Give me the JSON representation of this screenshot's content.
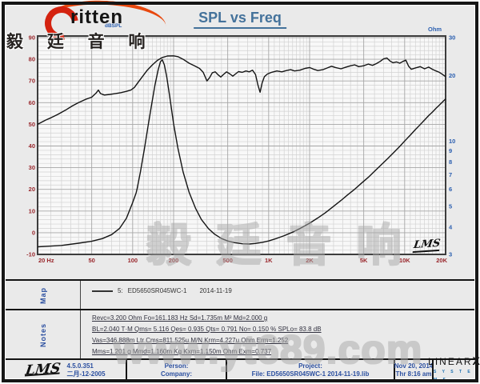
{
  "header": {
    "logo_text": "ritten",
    "logo_cjk": "毅 廷 音 响",
    "title": "SPL vs Freq"
  },
  "chart": {
    "left_unit": "dBSPL",
    "right_unit": "Ohm",
    "lms_mark": "LMS",
    "watermark_cjk": "毅 廷 音 响",
    "colors": {
      "freq_labels": "#99272c",
      "left_labels": "#99272c",
      "right_labels": "#2b5fb0",
      "curve": "#141414",
      "grid_minor": "#d2d2d2",
      "grid_major": "#a6a6a6",
      "plot_bg": "#f8f8f8",
      "plot_frame": "#3d3d3d"
    }
  },
  "chart_data": {
    "type": "line",
    "title": "SPL vs Freq",
    "x_axis": {
      "scale": "log",
      "min": 20,
      "max": 20000,
      "unit": "Hz",
      "major_ticks": [
        20,
        50,
        100,
        200,
        500,
        1000,
        2000,
        5000,
        10000,
        20000
      ],
      "tick_labels": [
        "20 Hz",
        "50",
        "100",
        "200",
        "500",
        "1K",
        "2K",
        "5K",
        "10K",
        "20K"
      ]
    },
    "y_left": {
      "label": "dBSPL",
      "scale": "linear",
      "min": -10,
      "max": 90,
      "ticks": [
        90,
        80,
        70,
        60,
        50,
        40,
        30,
        20,
        10,
        0,
        -10
      ]
    },
    "y_right": {
      "label": "Ohm",
      "scale": "log",
      "min": 3,
      "max": 30,
      "ticks": [
        30,
        20,
        10,
        9,
        8,
        7,
        6,
        5,
        4,
        3
      ]
    },
    "legend_position": "map strip below chart",
    "grid": true,
    "series": [
      {
        "name": "SPL  5: ED5650SR045WC-1  2014-11-19",
        "axis": "left",
        "color": "#141414",
        "points": [
          [
            20,
            50
          ],
          [
            23,
            52
          ],
          [
            25,
            53
          ],
          [
            28,
            54.5
          ],
          [
            32,
            56.5
          ],
          [
            36,
            58.5
          ],
          [
            40,
            60
          ],
          [
            45,
            61.5
          ],
          [
            50,
            62.5
          ],
          [
            54,
            64.5
          ],
          [
            56,
            65.8
          ],
          [
            58,
            64.2
          ],
          [
            62,
            63.5
          ],
          [
            68,
            63.8
          ],
          [
            75,
            64.2
          ],
          [
            82,
            64.6
          ],
          [
            90,
            65.2
          ],
          [
            97,
            65.8
          ],
          [
            103,
            67
          ],
          [
            110,
            69.5
          ],
          [
            118,
            72
          ],
          [
            128,
            75
          ],
          [
            140,
            77.5
          ],
          [
            152,
            79.5
          ],
          [
            165,
            80.8
          ],
          [
            180,
            81.5
          ],
          [
            200,
            81.6
          ],
          [
            215,
            81.2
          ],
          [
            235,
            80
          ],
          [
            260,
            78.2
          ],
          [
            285,
            77
          ],
          [
            310,
            75.8
          ],
          [
            330,
            74
          ],
          [
            352,
            70
          ],
          [
            368,
            71.5
          ],
          [
            385,
            73.8
          ],
          [
            405,
            74.2
          ],
          [
            425,
            72.8
          ],
          [
            445,
            71.8
          ],
          [
            465,
            73
          ],
          [
            490,
            74.2
          ],
          [
            520,
            73.2
          ],
          [
            545,
            72.2
          ],
          [
            570,
            73.2
          ],
          [
            600,
            74.3
          ],
          [
            640,
            74
          ],
          [
            680,
            74.6
          ],
          [
            720,
            74.2
          ],
          [
            760,
            75
          ],
          [
            800,
            73
          ],
          [
            835,
            68
          ],
          [
            865,
            64.8
          ],
          [
            895,
            69
          ],
          [
            930,
            72
          ],
          [
            980,
            73.2
          ],
          [
            1050,
            74
          ],
          [
            1150,
            74.6
          ],
          [
            1250,
            74.2
          ],
          [
            1350,
            74.8
          ],
          [
            1450,
            75.2
          ],
          [
            1550,
            74.6
          ],
          [
            1700,
            75
          ],
          [
            1850,
            75.8
          ],
          [
            2000,
            76.2
          ],
          [
            2150,
            75.4
          ],
          [
            2300,
            74.8
          ],
          [
            2500,
            75.2
          ],
          [
            2700,
            76
          ],
          [
            2900,
            76.8
          ],
          [
            3100,
            76.2
          ],
          [
            3400,
            75.6
          ],
          [
            3700,
            76.4
          ],
          [
            4000,
            77
          ],
          [
            4300,
            77.4
          ],
          [
            4600,
            76.6
          ],
          [
            5000,
            77
          ],
          [
            5400,
            77.8
          ],
          [
            5800,
            77.2
          ],
          [
            6200,
            78
          ],
          [
            6600,
            79
          ],
          [
            7000,
            80.2
          ],
          [
            7400,
            80.6
          ],
          [
            7800,
            79.2
          ],
          [
            8200,
            78.4
          ],
          [
            8700,
            78.8
          ],
          [
            9200,
            78.2
          ],
          [
            9700,
            79
          ],
          [
            10200,
            79.6
          ],
          [
            10700,
            76.8
          ],
          [
            11200,
            75.4
          ],
          [
            12000,
            76
          ],
          [
            13000,
            76.6
          ],
          [
            14000,
            75.6
          ],
          [
            15000,
            76.4
          ],
          [
            16000,
            75.4
          ],
          [
            17000,
            74.6
          ],
          [
            18000,
            74
          ],
          [
            19000,
            73
          ],
          [
            20000,
            72
          ]
        ]
      },
      {
        "name": "Impedance",
        "axis": "right",
        "color": "#141414",
        "points": [
          [
            20,
            3.25
          ],
          [
            30,
            3.3
          ],
          [
            40,
            3.38
          ],
          [
            50,
            3.45
          ],
          [
            60,
            3.55
          ],
          [
            70,
            3.7
          ],
          [
            80,
            3.95
          ],
          [
            90,
            4.4
          ],
          [
            100,
            5.2
          ],
          [
            106,
            5.75
          ],
          [
            108,
            6.05
          ],
          [
            114,
            7.2
          ],
          [
            122,
            9.2
          ],
          [
            130,
            11.8
          ],
          [
            138,
            14.8
          ],
          [
            146,
            18.2
          ],
          [
            154,
            21.3
          ],
          [
            160,
            23.2
          ],
          [
            165,
            23.7
          ],
          [
            171,
            22.5
          ],
          [
            178,
            19.8
          ],
          [
            188,
            15.8
          ],
          [
            200,
            12
          ],
          [
            215,
            9.3
          ],
          [
            235,
            7.2
          ],
          [
            260,
            5.8
          ],
          [
            290,
            4.9
          ],
          [
            320,
            4.35
          ],
          [
            360,
            3.95
          ],
          [
            400,
            3.72
          ],
          [
            450,
            3.55
          ],
          [
            500,
            3.46
          ],
          [
            560,
            3.4
          ],
          [
            640,
            3.36
          ],
          [
            720,
            3.35
          ],
          [
            800,
            3.37
          ],
          [
            900,
            3.41
          ],
          [
            1000,
            3.46
          ],
          [
            1150,
            3.56
          ],
          [
            1300,
            3.66
          ],
          [
            1500,
            3.8
          ],
          [
            1700,
            3.95
          ],
          [
            2000,
            4.18
          ],
          [
            2300,
            4.42
          ],
          [
            2600,
            4.66
          ],
          [
            3000,
            5
          ],
          [
            3400,
            5.32
          ],
          [
            3800,
            5.64
          ],
          [
            4300,
            6
          ],
          [
            4800,
            6.38
          ],
          [
            5400,
            6.8
          ],
          [
            6000,
            7.25
          ],
          [
            6700,
            7.75
          ],
          [
            7500,
            8.3
          ],
          [
            8300,
            8.85
          ],
          [
            9200,
            9.45
          ],
          [
            10000,
            10
          ],
          [
            11000,
            10.65
          ],
          [
            12000,
            11.3
          ],
          [
            13000,
            11.9
          ],
          [
            14000,
            12.5
          ],
          [
            15000,
            13.1
          ],
          [
            16000,
            13.6
          ],
          [
            17000,
            14.15
          ],
          [
            18000,
            14.65
          ],
          [
            19000,
            15.15
          ],
          [
            20000,
            15.65
          ]
        ]
      }
    ]
  },
  "map_section": {
    "label": "Map",
    "legend_index": "5:",
    "legend_name": "ED5650SR045WC-1",
    "legend_date": "2014-11-19"
  },
  "notes_section": {
    "label": "Notes",
    "lines": [
      "Revc=3.200 Ohm  Fo=161.183 Hz  Sd=1.735m M²  Md=2.000 g",
      "BL=2.040 T·M  Qms= 5.116  Qes= 0.935  Qts= 0.791  No= 0.150 %  SPLo= 83.8 dB",
      "Vas=346.888m Ltr  Cms=811.525u M/N  Krm=4.227u Ohm  Erm=1.252",
      "Mms=1.201 g  Mmd=1.160m Kg  Kxm=1.150m Ohm  Exm=0.737"
    ]
  },
  "footer": {
    "lms_logo": "LMS",
    "version": "4.5.0.351",
    "version_date": "二月-12-2005",
    "person_label": "Person:",
    "company_label": "Company:",
    "project_label": "Project:",
    "file_line": "File: ED5650SR045WC-1   2014-11-19.lib",
    "date": "Nov 20, 2014",
    "time": "Thr  8:16 am",
    "brand_main": "LINEAR",
    "brand_x": "X",
    "brand_sub": "S Y S T E M S"
  },
  "watermarks": {
    "url": "www.yt689.com"
  }
}
